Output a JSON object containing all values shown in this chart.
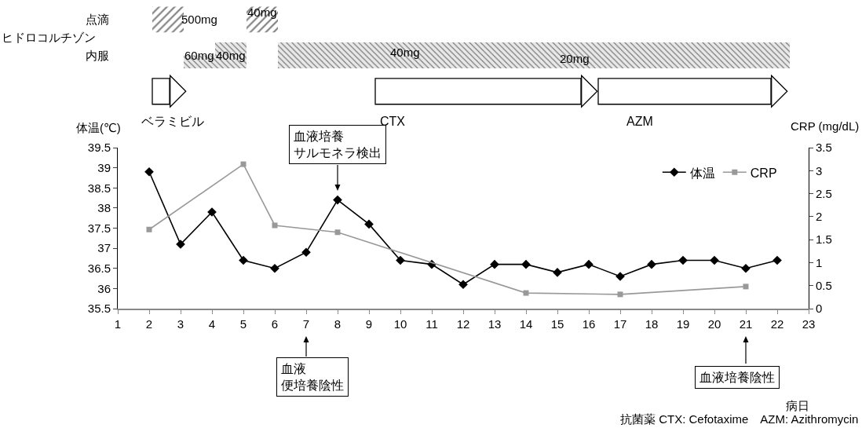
{
  "chart_data": [
    {
      "type": "bar",
      "orientation": "horizontal",
      "categories": [
        "点滴",
        "内服",
        null
      ],
      "series": [
        {
          "colors": [
            "#ffffff",
            "#e8e8e8",
            "#ffffff"
          ],
          "values": [
            1.0,
            1.0,
            0.55
          ],
          "base": [
            2.1,
            3.1,
            2.1
          ]
        },
        {
          "colors": [
            "#ffffff",
            "#e8e8e8",
            "#ffffff"
          ],
          "values": [
            1.0,
            1.0,
            6.55
          ],
          "base": [
            5.1,
            4.1,
            9.2
          ]
        },
        {
          "colors": [
            null,
            "#e8e8e8",
            "#ffffff"
          ],
          "values": [
            null,
            6.1,
            5.5
          ],
          "base": [
            null,
            6.1,
            16.3
          ]
        },
        {
          "colors": [
            null,
            "#e8e8e8",
            null
          ],
          "values": [
            null,
            10.2,
            null
          ],
          "base": [
            null,
            12.2,
            null
          ]
        }
      ],
      "xlim": [
        1,
        23
      ],
      "tick_labels": "y",
      "annotations": [
        "ヒドロコルチゾン",
        "500mg",
        "40mg",
        "60mg",
        "40mg",
        "40mg",
        "20mg",
        "ベラミビル",
        "CTX",
        "AZM"
      ]
    },
    {
      "type": "line",
      "x": [
        2,
        3,
        4,
        5,
        6,
        7,
        8,
        9,
        10,
        11,
        12,
        13,
        14,
        15,
        16,
        17,
        18,
        19,
        20,
        21,
        22
      ],
      "series": [
        {
          "name": "体温",
          "color": "#000000",
          "marker": "diamond",
          "values": [
            38.9,
            37.1,
            37.9,
            36.7,
            36.5,
            36.9,
            38.2,
            37.6,
            36.7,
            36.6,
            36.1,
            36.6,
            36.6,
            36.4,
            36.6,
            36.3,
            36.6,
            36.7,
            36.7,
            36.5,
            36.7
          ]
        },
        {
          "name": "CRP",
          "color": "#999999",
          "marker": "square",
          "axis": "y2",
          "x": [
            2,
            5,
            6,
            8,
            14,
            17,
            21
          ],
          "values": [
            1.72,
            3.14,
            1.81,
            1.66,
            0.34,
            0.31,
            0.48
          ]
        }
      ],
      "ylabel": "体温(℃)",
      "y2label": "CRP (mg/dL)",
      "xlim": [
        1,
        23
      ],
      "xticks": [
        1,
        2,
        3,
        4,
        5,
        6,
        7,
        8,
        9,
        10,
        11,
        12,
        13,
        14,
        15,
        16,
        17,
        18,
        19,
        20,
        21,
        22,
        23
      ],
      "ylim": [
        35.5,
        39.5
      ],
      "yticks": [
        35.5,
        36,
        36.5,
        37,
        37.5,
        38,
        38.5,
        39,
        39.5
      ],
      "y2lim": [
        0,
        3.5
      ],
      "y2ticks": [
        0,
        0.5,
        1,
        1.5,
        2,
        2.5,
        3,
        3.5
      ],
      "grid": false,
      "legend": "top right",
      "line_style": "solid",
      "annotations": [
        "病日",
        "抗菌薬 CTX: Cefotaxime　AZM: Azithromycin",
        "血液培養サルモネラ検出",
        "血液便培養陰性",
        "血液培養陰性"
      ]
    }
  ]
}
